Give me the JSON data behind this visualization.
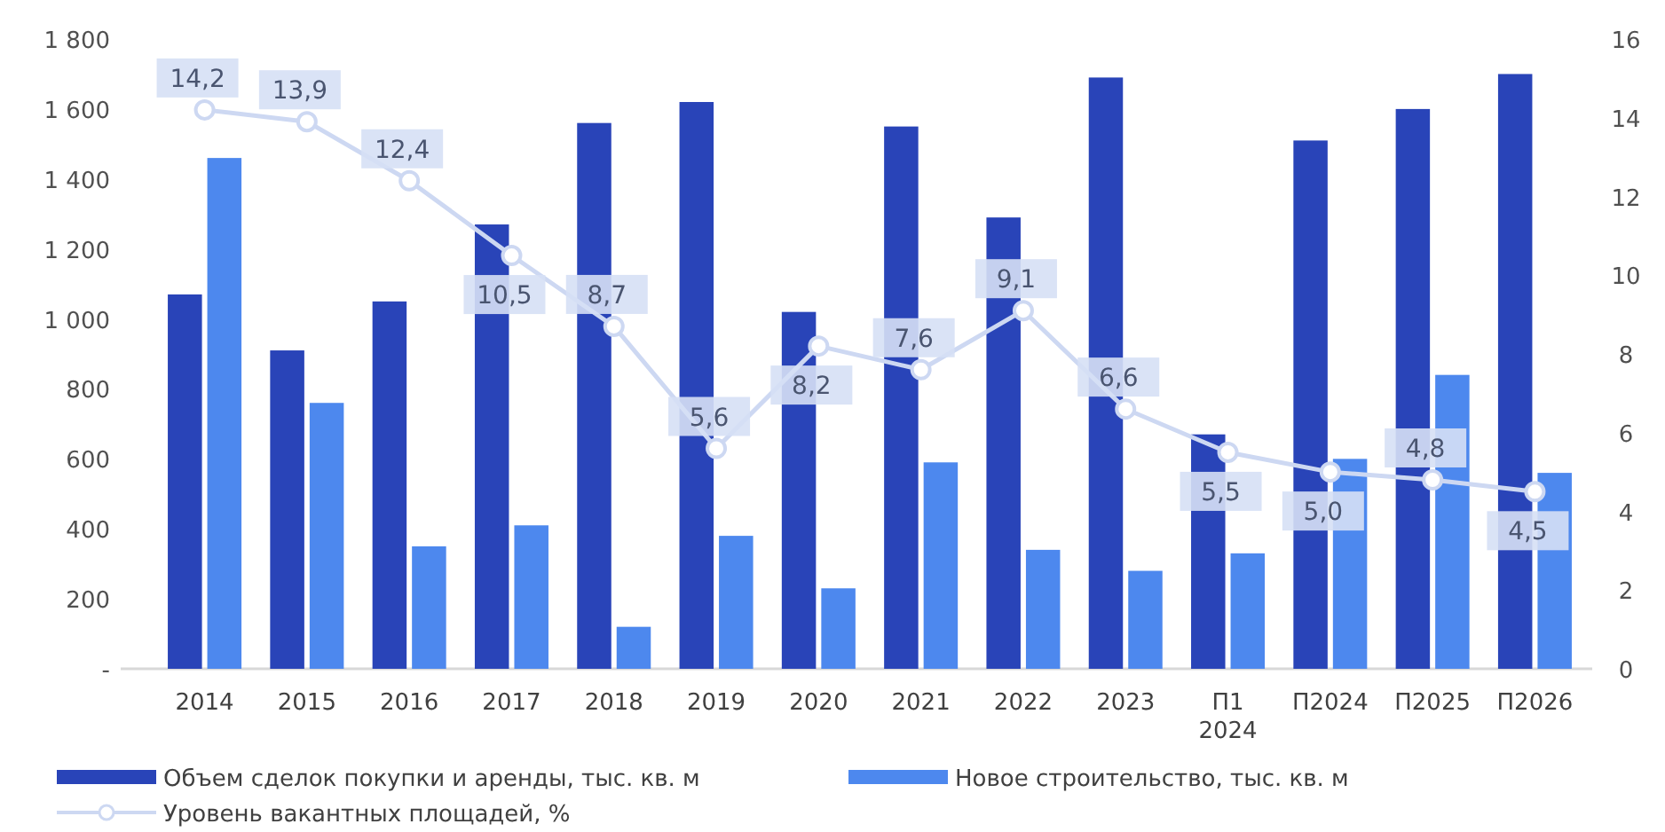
{
  "chart_data": {
    "type": "bar",
    "categories": [
      "2014",
      "2015",
      "2016",
      "2017",
      "2018",
      "2019",
      "2020",
      "2021",
      "2022",
      "2023",
      "П1\n2024",
      "П2024",
      "П2025",
      "П2026"
    ],
    "series": [
      {
        "name": "Объем сделок покупки и аренды, тыс. кв. м",
        "color": "#2944b8",
        "values": [
          1070,
          910,
          1050,
          1270,
          1560,
          1620,
          1020,
          1550,
          1290,
          1690,
          670,
          1510,
          1600,
          1700
        ]
      },
      {
        "name": "Новое строительство, тыс. кв. м",
        "color": "#4d88ee",
        "values": [
          1460,
          760,
          350,
          410,
          120,
          380,
          230,
          590,
          340,
          280,
          330,
          600,
          840,
          560
        ]
      },
      {
        "name": "Уровень вакантных площадей, %",
        "type": "line",
        "axis": "y2",
        "color": "#cdd8f2",
        "marker": "circle",
        "values": [
          14.2,
          13.9,
          12.4,
          10.5,
          8.7,
          5.6,
          8.2,
          7.6,
          9.1,
          6.6,
          5.5,
          5.0,
          4.8,
          4.5
        ],
        "value_labels": [
          "14,2",
          "13,9",
          "12,4",
          "10,5",
          "8,7",
          "5,6",
          "8,2",
          "7,6",
          "9,1",
          "6,6",
          "5,5",
          "5,0",
          "4,8",
          "4,5"
        ]
      }
    ],
    "ylim": [
      0,
      1800
    ],
    "yticks": [
      {
        "value": 0,
        "label": "-"
      },
      {
        "value": 200,
        "label": "200"
      },
      {
        "value": 400,
        "label": "400"
      },
      {
        "value": 600,
        "label": "600"
      },
      {
        "value": 800,
        "label": "800"
      },
      {
        "value": 1000,
        "label": "1 000"
      },
      {
        "value": 1200,
        "label": "1 200"
      },
      {
        "value": 1400,
        "label": "1 400"
      },
      {
        "value": 1600,
        "label": "1 600"
      },
      {
        "value": 1800,
        "label": "1 800"
      }
    ],
    "y2lim": [
      0,
      16
    ],
    "y2ticks": [
      0,
      2,
      4,
      6,
      8,
      10,
      12,
      14,
      16
    ],
    "legend": "bottom",
    "grid": false
  }
}
